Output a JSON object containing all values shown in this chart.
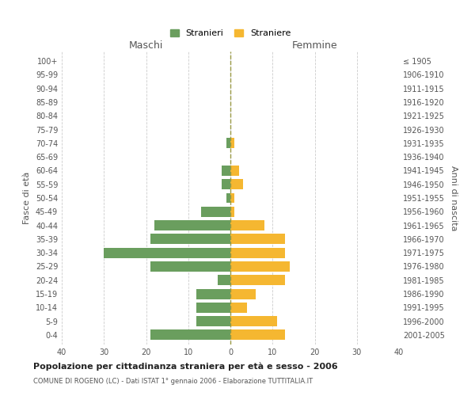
{
  "age_groups": [
    "100+",
    "95-99",
    "90-94",
    "85-89",
    "80-84",
    "75-79",
    "70-74",
    "65-69",
    "60-64",
    "55-59",
    "50-54",
    "45-49",
    "40-44",
    "35-39",
    "30-34",
    "25-29",
    "20-24",
    "15-19",
    "10-14",
    "5-9",
    "0-4"
  ],
  "birth_years": [
    "≤ 1905",
    "1906-1910",
    "1911-1915",
    "1916-1920",
    "1921-1925",
    "1926-1930",
    "1931-1935",
    "1936-1940",
    "1941-1945",
    "1946-1950",
    "1951-1955",
    "1956-1960",
    "1961-1965",
    "1966-1970",
    "1971-1975",
    "1976-1980",
    "1981-1985",
    "1986-1990",
    "1991-1995",
    "1996-2000",
    "2001-2005"
  ],
  "males": [
    0,
    0,
    0,
    0,
    0,
    0,
    1,
    0,
    2,
    2,
    1,
    7,
    18,
    19,
    30,
    19,
    3,
    8,
    8,
    8,
    19
  ],
  "females": [
    0,
    0,
    0,
    0,
    0,
    0,
    1,
    0,
    2,
    3,
    1,
    1,
    8,
    13,
    13,
    14,
    13,
    6,
    4,
    11,
    13
  ],
  "male_color": "#6a9e5e",
  "female_color": "#f5b731",
  "bar_height": 0.75,
  "xlim": 40,
  "title": "Popolazione per cittadinanza straniera per età e sesso - 2006",
  "subtitle": "COMUNE DI ROGENO (LC) - Dati ISTAT 1° gennaio 2006 - Elaborazione TUTTITALIA.IT",
  "ylabel_left": "Fasce di età",
  "ylabel_right": "Anni di nascita",
  "legend_stranieri": "Stranieri",
  "legend_straniere": "Straniere",
  "maschi_label": "Maschi",
  "femmine_label": "Femmine",
  "bg_color": "#ffffff",
  "grid_color": "#cccccc",
  "center_line_color": "#999944",
  "label_color": "#555555",
  "title_color": "#222222"
}
